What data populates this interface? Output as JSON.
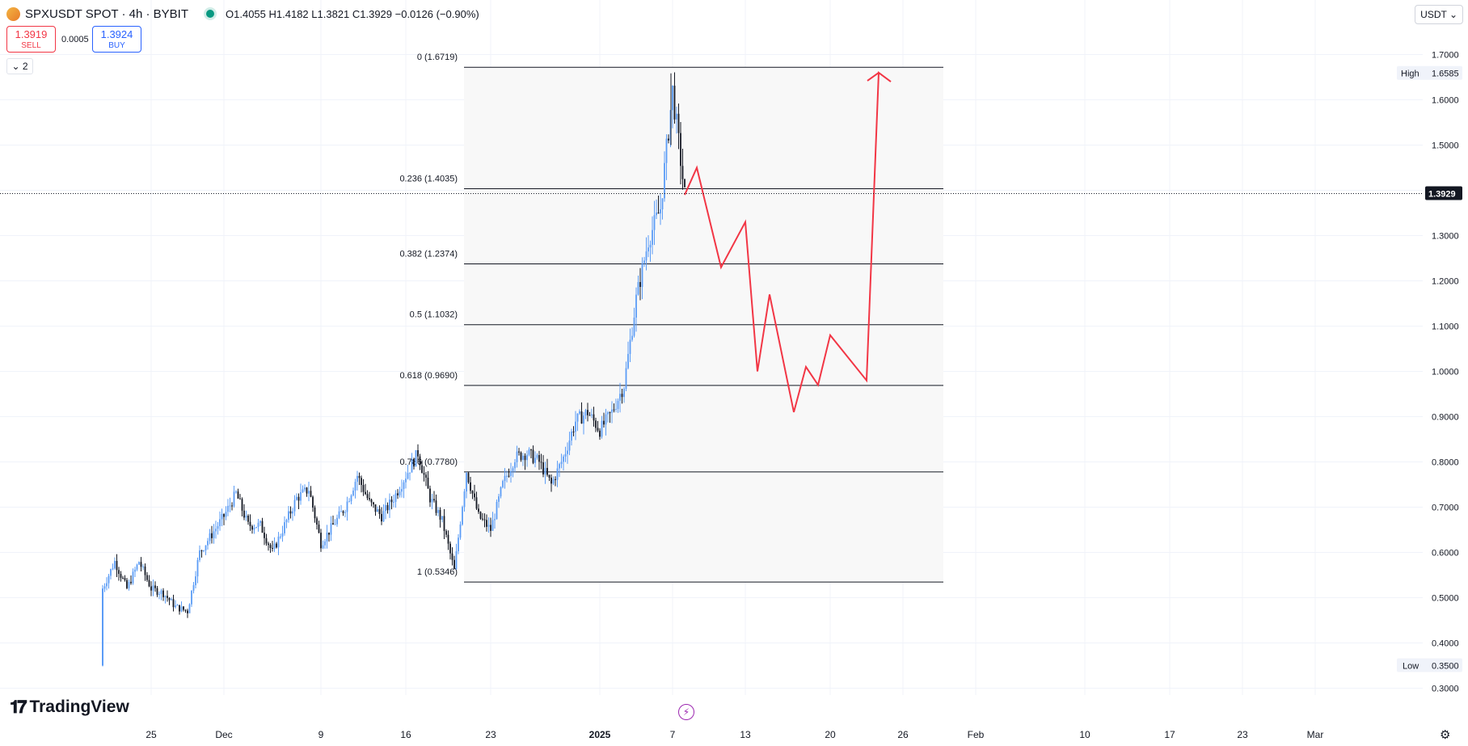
{
  "header": {
    "symbol": "SPXUSDT SPOT · 4h · BYBIT",
    "ohlc": "O1.4055 H1.4182 L1.3821 C1.3929 −0.0126 (−0.90%)"
  },
  "trade": {
    "sell_price": "1.3919",
    "sell_label": "SELL",
    "spread": "0.0005",
    "buy_price": "1.3924",
    "buy_label": "BUY"
  },
  "indicator_toggle": "⌄ 2",
  "currency": "USDT ⌄",
  "brand": {
    "mark": "𝟏𝟕",
    "name": "TradingView"
  },
  "colors": {
    "up": "#5b9cf6",
    "down": "#131722",
    "projection": "#f23645",
    "grid": "#f0f3fa",
    "fib_line": "#131722",
    "fib_fill": "#f8f8f8"
  },
  "chart_data": {
    "type": "candlestick",
    "title": "SPXUSDT SPOT · 4h · BYBIT",
    "ylim": [
      0.25,
      1.75
    ],
    "y_ticks": [
      "1.7000",
      "1.6000",
      "1.5000",
      "1.4000",
      "1.3000",
      "1.2000",
      "1.1000",
      "1.0000",
      "0.9000",
      "0.8000",
      "0.7000",
      "0.6000",
      "0.5000",
      "0.4000",
      "0.3000"
    ],
    "x_ticks": [
      {
        "label": "25",
        "date": "2024-11-25"
      },
      {
        "label": "Dec",
        "date": "2024-12-01"
      },
      {
        "label": "9",
        "date": "2024-12-09"
      },
      {
        "label": "16",
        "date": "2024-12-16"
      },
      {
        "label": "23",
        "date": "2024-12-23"
      },
      {
        "label": "2025",
        "date": "2025-01-01"
      },
      {
        "label": "7",
        "date": "2025-01-07"
      },
      {
        "label": "13",
        "date": "2025-01-13"
      },
      {
        "label": "20",
        "date": "2025-01-20"
      },
      {
        "label": "26",
        "date": "2025-01-26"
      },
      {
        "label": "Feb",
        "date": "2025-02-01"
      },
      {
        "label": "10",
        "date": "2025-02-10"
      },
      {
        "label": "17",
        "date": "2025-02-17"
      },
      {
        "label": "23",
        "date": "2025-02-23"
      },
      {
        "label": "Mar",
        "date": "2025-03-01"
      }
    ],
    "price_path": [
      [
        "2024-11-21",
        0.35
      ],
      [
        "2024-11-21",
        0.52
      ],
      [
        "2024-11-22",
        0.58
      ],
      [
        "2024-11-23",
        0.52
      ],
      [
        "2024-11-24",
        0.58
      ],
      [
        "2024-11-25",
        0.52
      ],
      [
        "2024-11-26",
        0.51
      ],
      [
        "2024-11-27",
        0.48
      ],
      [
        "2024-11-28",
        0.47
      ],
      [
        "2024-11-29",
        0.6
      ],
      [
        "2024-11-30",
        0.64
      ],
      [
        "2024-12-01",
        0.68
      ],
      [
        "2024-12-02",
        0.73
      ],
      [
        "2024-12-03",
        0.66
      ],
      [
        "2024-12-04",
        0.66
      ],
      [
        "2024-12-05",
        0.6
      ],
      [
        "2024-12-06",
        0.66
      ],
      [
        "2024-12-07",
        0.72
      ],
      [
        "2024-12-08",
        0.74
      ],
      [
        "2024-12-09",
        0.62
      ],
      [
        "2024-12-10",
        0.66
      ],
      [
        "2024-12-11",
        0.7
      ],
      [
        "2024-12-12",
        0.77
      ],
      [
        "2024-12-13",
        0.71
      ],
      [
        "2024-12-14",
        0.68
      ],
      [
        "2024-12-15",
        0.72
      ],
      [
        "2024-12-16",
        0.77
      ],
      [
        "2024-12-17",
        0.82
      ],
      [
        "2024-12-18",
        0.72
      ],
      [
        "2024-12-19",
        0.67
      ],
      [
        "2024-12-20",
        0.56
      ],
      [
        "2024-12-21",
        0.78
      ],
      [
        "2024-12-22",
        0.68
      ],
      [
        "2024-12-23",
        0.65
      ],
      [
        "2024-12-24",
        0.75
      ],
      [
        "2024-12-25",
        0.81
      ],
      [
        "2024-12-26",
        0.82
      ],
      [
        "2024-12-27",
        0.8
      ],
      [
        "2024-12-28",
        0.75
      ],
      [
        "2024-12-29",
        0.81
      ],
      [
        "2024-12-30",
        0.89
      ],
      [
        "2024-12-31",
        0.91
      ],
      [
        "2025-01-01",
        0.87
      ],
      [
        "2025-01-02",
        0.91
      ],
      [
        "2025-01-03",
        0.97
      ],
      [
        "2025-01-04",
        1.16
      ],
      [
        "2025-01-05",
        1.29
      ],
      [
        "2025-01-06",
        1.36
      ],
      [
        "2025-01-07",
        1.62
      ],
      [
        "2025-01-08",
        1.39
      ]
    ],
    "fibonacci": [
      {
        "label": "0 (1.6719)",
        "value": 1.6719
      },
      {
        "label": "0.236 (1.4035)",
        "value": 1.4035
      },
      {
        "label": "0.382 (1.2374)",
        "value": 1.2374
      },
      {
        "label": "0.5 (1.1032)",
        "value": 1.1032
      },
      {
        "label": "0.618 (0.9690)",
        "value": 0.969
      },
      {
        "label": "0.786 (0.7780)",
        "value": 0.778
      },
      {
        "label": "1 (0.5346)",
        "value": 0.5346
      }
    ],
    "fib_range": {
      "start": "2024-12-20",
      "end": "2025-01-29"
    },
    "projection": [
      [
        "2025-01-08",
        1.39
      ],
      [
        "2025-01-09",
        1.45
      ],
      [
        "2025-01-11",
        1.23
      ],
      [
        "2025-01-13",
        1.33
      ],
      [
        "2025-01-14",
        1.0
      ],
      [
        "2025-01-15",
        1.17
      ],
      [
        "2025-01-17",
        0.91
      ],
      [
        "2025-01-18",
        1.01
      ],
      [
        "2025-01-19",
        0.97
      ],
      [
        "2025-01-20",
        1.08
      ],
      [
        "2025-01-23",
        0.98
      ],
      [
        "2025-01-24",
        1.66
      ],
      [
        "2025-01-25",
        1.64
      ]
    ],
    "current_price": {
      "label": "1.3929",
      "value": 1.3929
    },
    "high": {
      "label": "High",
      "value_label": "1.6585",
      "value": 1.6585
    },
    "low": {
      "label": "Low",
      "value_label": "0.3500",
      "value": 0.35
    }
  }
}
